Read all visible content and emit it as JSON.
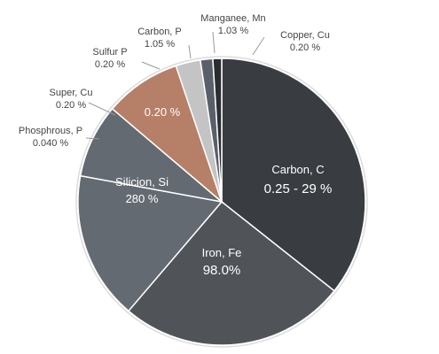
{
  "chart_data": {
    "type": "pie",
    "slices": [
      {
        "name": "Carbon, C",
        "value_label": "0.25 - 29 %",
        "share": 0.3567,
        "color": "#393c40",
        "label_place": "inside"
      },
      {
        "name": "Iron, Fe",
        "value_label": "98.0%",
        "share": 0.2556,
        "color": "#505459",
        "label_place": "inside"
      },
      {
        "name": "Silicion, Si",
        "value_label": "280 %",
        "share": 0.1667,
        "color": "#646a71",
        "label_place": "inside"
      },
      {
        "name": "Phosphrous, P",
        "value_label": "0.040 %",
        "share": 0.0833,
        "color": "#646a71",
        "label_place": "outside"
      },
      {
        "name": "Super, Cu",
        "value_label": "0.20 %",
        "share": 0.0,
        "color": "#646a71",
        "label_place": "outside"
      },
      {
        "name": "",
        "value_label": "0.20 %",
        "share": 0.0861,
        "color": "#b67f68",
        "label_place": "inside"
      },
      {
        "name": "Sulfur P",
        "value_label": "0.20 %",
        "share": 0.0,
        "color": "#b67f68",
        "label_place": "outside"
      },
      {
        "name": "Carbon, P",
        "value_label": "1.05 %",
        "share": 0.0278,
        "color": "#c4c4c4",
        "label_place": "outside"
      },
      {
        "name": "Manganee, Mn",
        "value_label": "1.03 %",
        "share": 0.0139,
        "color": "#5a6069",
        "label_place": "outside"
      },
      {
        "name": "Copper, Cu",
        "value_label": "0.20 %",
        "share": 0.0099,
        "color": "#2b2d30",
        "label_place": "outside"
      }
    ]
  }
}
